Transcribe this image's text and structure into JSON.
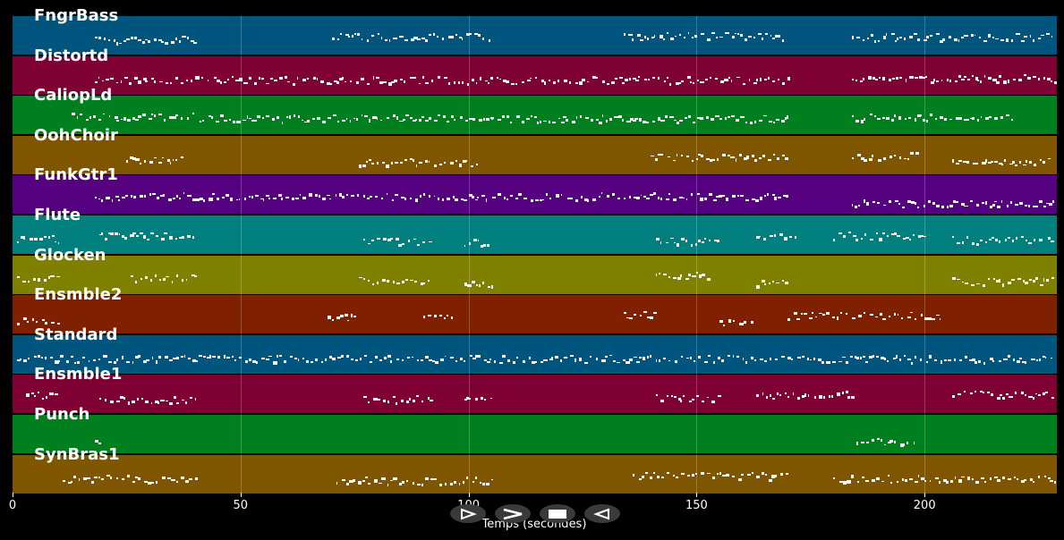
{
  "colors": {
    "background": "#000000",
    "note": "#ffffff",
    "palette": [
      "#00557f",
      "#7f0032",
      "#007f1f",
      "#7f5500",
      "#55007f",
      "#007f7f",
      "#7f7f00",
      "#7f2000"
    ]
  },
  "tracks": [
    {
      "name": "FngrBass",
      "color": "#00557f"
    },
    {
      "name": "Distortd",
      "color": "#7f0032"
    },
    {
      "name": "CaliopLd",
      "color": "#007f1f"
    },
    {
      "name": "OohChoir",
      "color": "#7f5500"
    },
    {
      "name": "FunkGtr1",
      "color": "#55007f"
    },
    {
      "name": "Flute",
      "color": "#007f7f"
    },
    {
      "name": "Glocken",
      "color": "#7f7f00"
    },
    {
      "name": "Ensmble2",
      "color": "#7f2000"
    },
    {
      "name": "Standard",
      "color": "#00557f"
    },
    {
      "name": "Ensmble1",
      "color": "#7f0032"
    },
    {
      "name": "Punch",
      "color": "#007f1f"
    },
    {
      "name": "SynBras1",
      "color": "#7f5500"
    }
  ],
  "timeline": {
    "xlabel": "Temps (secondes)",
    "xmin": 0,
    "xmax": 229,
    "ticks": [
      "0",
      "50",
      "100",
      "150",
      "200"
    ],
    "tick_values": [
      0,
      50,
      100,
      150,
      200
    ]
  },
  "controls": [
    {
      "name": "play-forward",
      "icon": "play-outline-icon"
    },
    {
      "name": "fast-forward",
      "icon": "fast-forward-icon"
    },
    {
      "name": "stop",
      "icon": "stop-icon"
    },
    {
      "name": "rewind",
      "icon": "rewind-icon"
    }
  ]
}
